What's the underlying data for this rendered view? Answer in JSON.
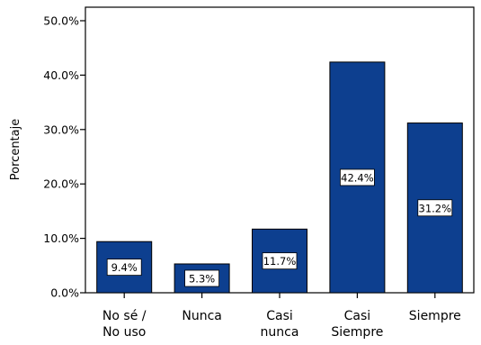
{
  "chart_data": {
    "type": "bar",
    "categories": [
      [
        "No sé /",
        "No uso"
      ],
      [
        "Nunca"
      ],
      [
        "Casi",
        "nunca"
      ],
      [
        "Casi",
        "Siempre"
      ],
      [
        "Siempre"
      ]
    ],
    "values": [
      9.4,
      5.3,
      11.7,
      42.4,
      31.2
    ],
    "data_labels": [
      "9.4%",
      "5.3%",
      "11.7%",
      "42.4%",
      "31.2%"
    ],
    "ylabel": "Porcentaje",
    "ylim": [
      0,
      50
    ],
    "yticks": [
      0,
      10,
      20,
      30,
      40,
      50
    ],
    "ytick_labels": [
      "0.0%",
      "10.0%",
      "20.0%",
      "30.0%",
      "40.0%",
      "50.0%"
    ],
    "bar_color": "#0d3f8f",
    "bar_edge_color": "#000000",
    "grid": false,
    "legend": "none"
  }
}
